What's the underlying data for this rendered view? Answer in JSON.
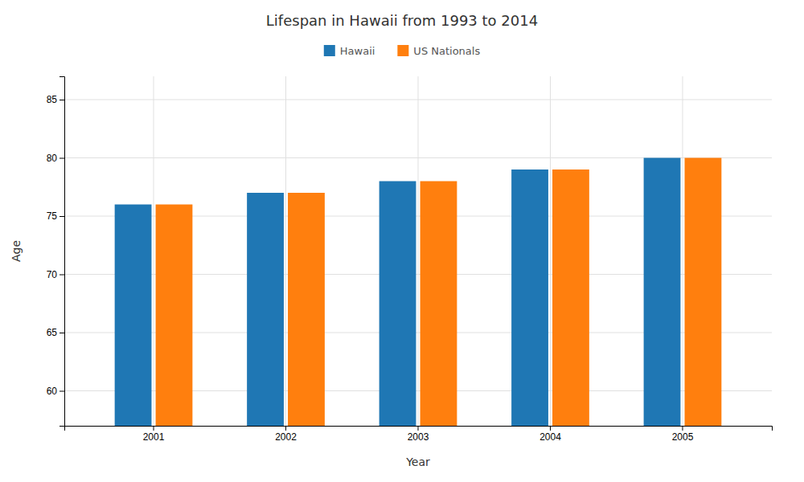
{
  "chart_data": {
    "type": "bar",
    "title": "Lifespan in Hawaii from 1993 to 2014",
    "x_label": "Year",
    "y_label": "Age",
    "categories": [
      "2001",
      "2002",
      "2003",
      "2004",
      "2005"
    ],
    "series": [
      {
        "name": "Hawaii",
        "values": [
          76,
          77,
          78,
          79,
          80
        ]
      },
      {
        "name": "US Nationals",
        "values": [
          76,
          77,
          78,
          79,
          80
        ]
      }
    ],
    "ylim": [
      57,
      87
    ],
    "yticks": [
      60,
      65,
      70,
      75,
      80,
      85
    ],
    "grid": true,
    "legend": "top"
  }
}
